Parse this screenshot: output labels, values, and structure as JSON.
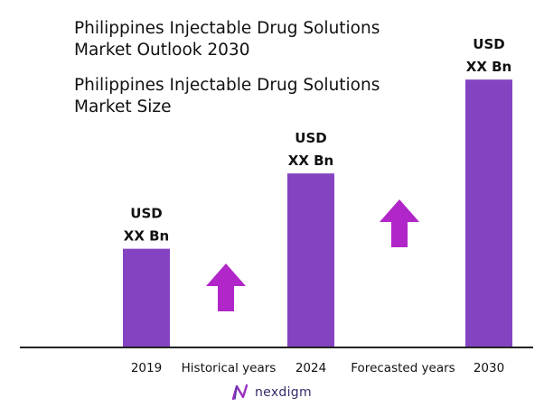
{
  "title": "Philippines Injectable Drug Solutions Market Outlook 2030",
  "subtitle": "Philippines Injectable Drug Solutions Market Size",
  "colors": {
    "bar": "#8444c2",
    "arrow": "#b126c8",
    "axis": "#222222"
  },
  "chart_data": {
    "type": "bar",
    "categories": [
      "2019",
      "2024",
      "2030"
    ],
    "values": [
      1.0,
      1.77,
      2.73
    ],
    "value_labels": [
      [
        "USD",
        "XX Bn"
      ],
      [
        "USD",
        "XX Bn"
      ],
      [
        "USD",
        "XX Bn"
      ]
    ],
    "period_labels": [
      "Historical years",
      "Forecasted years"
    ],
    "ylim": [
      0,
      2.75
    ],
    "grid": false,
    "legend": "none"
  },
  "logo": {
    "text": "nexdigm",
    "icon": "nexdigm-logo-icon"
  }
}
